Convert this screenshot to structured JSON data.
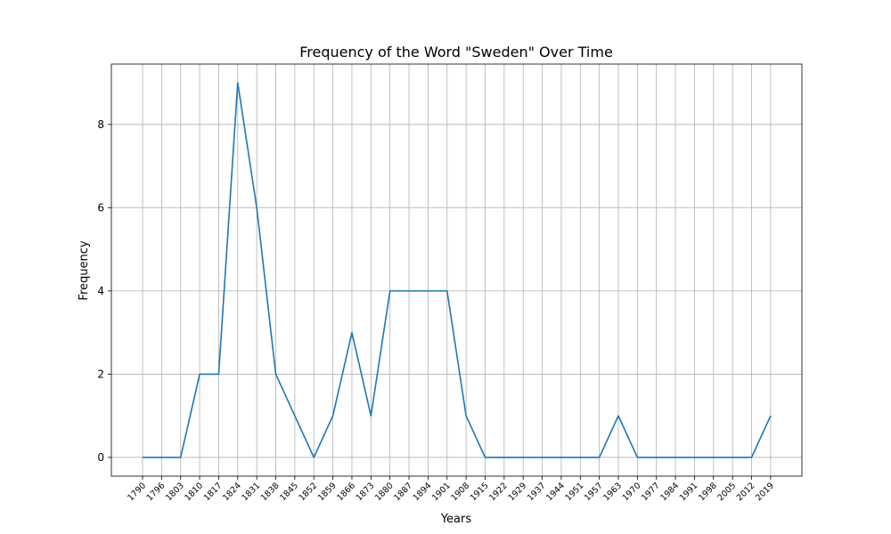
{
  "chart_data": {
    "type": "line",
    "title": "Frequency of the Word \"Sweden\" Over Time",
    "xlabel": "Years",
    "ylabel": "Frequency",
    "x": [
      1790,
      1796,
      1803,
      1810,
      1817,
      1824,
      1831,
      1838,
      1845,
      1852,
      1859,
      1866,
      1873,
      1880,
      1887,
      1894,
      1901,
      1908,
      1915,
      1922,
      1929,
      1937,
      1944,
      1951,
      1957,
      1963,
      1970,
      1977,
      1984,
      1991,
      1998,
      2005,
      2012,
      2019
    ],
    "x_tick_labels": [
      "1790",
      "1796",
      "1803",
      "1810",
      "1817",
      "1824",
      "1831",
      "1838",
      "1845",
      "1852",
      "1859",
      "1866",
      "1873",
      "1880",
      "1887",
      "1894",
      "1901",
      "1908",
      "1915",
      "1922",
      "1929",
      "1937",
      "1944",
      "1951",
      "1957",
      "1963",
      "1970",
      "1977",
      "1984",
      "1991",
      "1998",
      "2005",
      "2012",
      "2019"
    ],
    "series": [
      {
        "values": [
          0,
          0,
          0,
          2,
          2,
          9,
          6,
          2,
          1,
          0,
          1,
          3,
          1,
          4,
          4,
          4,
          4,
          1,
          0,
          0,
          0,
          0,
          0,
          0,
          0,
          1,
          0,
          0,
          0,
          0,
          0,
          0,
          0,
          1
        ],
        "color": "#1f77b4"
      }
    ],
    "y_ticks": [
      0,
      2,
      4,
      6,
      8
    ],
    "ylim": [
      -0.45,
      9.45
    ],
    "grid": true,
    "x_tick_rotation": 45
  }
}
